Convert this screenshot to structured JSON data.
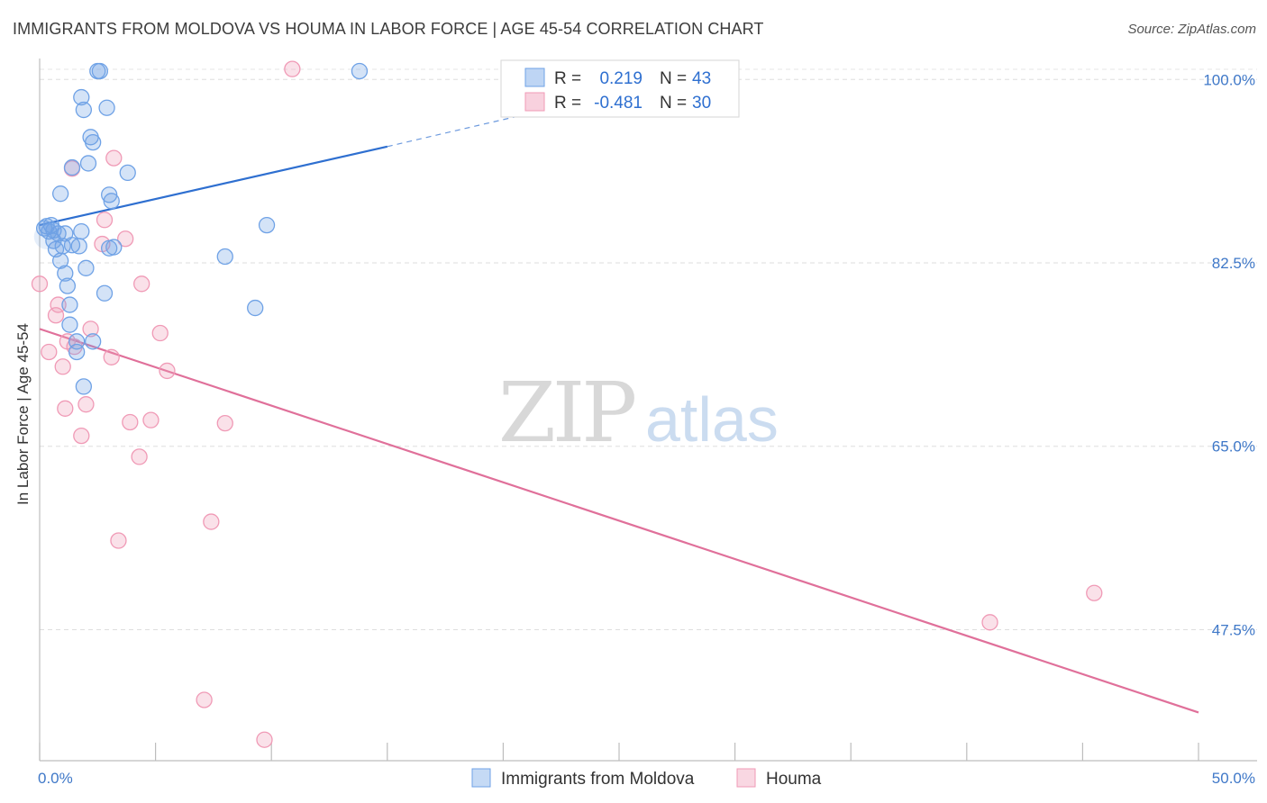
{
  "chart_data": {
    "type": "scatter",
    "title": "IMMIGRANTS FROM MOLDOVA VS HOUMA IN LABOR FORCE | AGE 45-54 CORRELATION CHART",
    "source": "Source: ZipAtlas.com",
    "ylabel": "In Labor Force | Age 45-54",
    "xlabel": "",
    "xlim": [
      0,
      50
    ],
    "ylim": [
      35,
      102
    ],
    "x_tick_labels": [
      "0.0%",
      "50.0%"
    ],
    "y_ticks": [
      47.5,
      65.0,
      82.5,
      100.0
    ],
    "y_tick_labels": [
      "47.5%",
      "65.0%",
      "82.5%",
      "100.0%"
    ],
    "grid": true,
    "legend_position": "bottom-center",
    "watermark": {
      "bold": "ZIP",
      "light": "atlas"
    },
    "stats": [
      {
        "r_label": "R =",
        "r_value": "0.219",
        "n_label": "N =",
        "n_value": "43"
      },
      {
        "r_label": "R =",
        "r_value": "-0.481",
        "n_label": "N =",
        "n_value": "30"
      }
    ],
    "series": [
      {
        "name": "Immigrants from Moldova",
        "color": "#6fa2e6",
        "line_color": "#2e6fd0",
        "trend": {
          "x0": 0,
          "y0": 86.1,
          "x1": 15,
          "y1": 93.6,
          "dash_to_x": 22,
          "dash_to_y": 97.2
        },
        "points": [
          [
            0.2,
            85.8
          ],
          [
            0.3,
            86.0
          ],
          [
            0.4,
            85.5
          ],
          [
            0.5,
            86.1
          ],
          [
            0.6,
            84.6
          ],
          [
            0.6,
            85.6
          ],
          [
            0.7,
            83.8
          ],
          [
            0.8,
            85.3
          ],
          [
            0.9,
            89.1
          ],
          [
            0.9,
            82.7
          ],
          [
            1.0,
            84.1
          ],
          [
            1.1,
            81.5
          ],
          [
            1.1,
            85.3
          ],
          [
            1.2,
            80.3
          ],
          [
            1.3,
            78.5
          ],
          [
            1.3,
            76.6
          ],
          [
            1.4,
            84.2
          ],
          [
            1.4,
            91.6
          ],
          [
            1.6,
            75.0
          ],
          [
            1.6,
            74.0
          ],
          [
            1.7,
            84.1
          ],
          [
            1.8,
            85.5
          ],
          [
            1.8,
            98.3
          ],
          [
            1.9,
            97.1
          ],
          [
            1.9,
            70.7
          ],
          [
            2.0,
            82.0
          ],
          [
            2.1,
            92.0
          ],
          [
            2.2,
            94.5
          ],
          [
            2.3,
            94.0
          ],
          [
            2.3,
            75.0
          ],
          [
            2.5,
            100.8
          ],
          [
            2.6,
            100.8
          ],
          [
            2.8,
            79.6
          ],
          [
            2.9,
            97.3
          ],
          [
            3.0,
            89.0
          ],
          [
            3.0,
            83.9
          ],
          [
            3.1,
            88.4
          ],
          [
            3.8,
            91.1
          ],
          [
            8.0,
            83.1
          ],
          [
            9.3,
            78.2
          ],
          [
            9.8,
            86.1
          ],
          [
            13.8,
            100.8
          ],
          [
            3.2,
            84.0
          ]
        ]
      },
      {
        "name": "Houma",
        "color": "#f09ab6",
        "line_color": "#e0709a",
        "trend": {
          "x0": 0,
          "y0": 76.2,
          "x1": 50,
          "y1": 39.6
        },
        "points": [
          [
            0.0,
            80.5
          ],
          [
            0.4,
            74.0
          ],
          [
            0.7,
            77.5
          ],
          [
            0.8,
            78.5
          ],
          [
            1.0,
            72.6
          ],
          [
            1.1,
            68.6
          ],
          [
            1.2,
            75.0
          ],
          [
            1.4,
            91.5
          ],
          [
            1.5,
            74.5
          ],
          [
            1.8,
            66.0
          ],
          [
            2.0,
            69.0
          ],
          [
            2.2,
            76.2
          ],
          [
            2.7,
            84.3
          ],
          [
            2.8,
            86.6
          ],
          [
            3.1,
            73.5
          ],
          [
            3.2,
            92.5
          ],
          [
            3.4,
            56.0
          ],
          [
            3.7,
            84.8
          ],
          [
            3.9,
            67.3
          ],
          [
            4.3,
            64.0
          ],
          [
            4.4,
            80.5
          ],
          [
            4.8,
            67.5
          ],
          [
            5.2,
            75.8
          ],
          [
            5.5,
            72.2
          ],
          [
            7.1,
            40.8
          ],
          [
            7.4,
            57.8
          ],
          [
            8.0,
            67.2
          ],
          [
            9.7,
            37.0
          ],
          [
            10.9,
            101.0
          ],
          [
            41.0,
            48.2
          ]
        ]
      }
    ]
  },
  "extra_points": [
    [
      45.5,
      51.0
    ]
  ]
}
